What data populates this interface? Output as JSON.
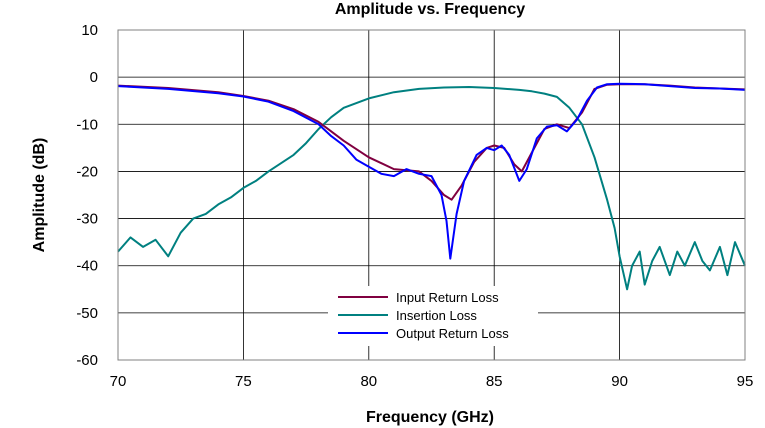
{
  "chart_data": {
    "type": "line",
    "title": "Amplitude vs. Frequency",
    "xlabel": "Frequency (GHz)",
    "ylabel": "Amplitude (dB)",
    "xlim": [
      70,
      95
    ],
    "ylim": [
      -60,
      10
    ],
    "xticks": [
      70,
      75,
      80,
      85,
      90,
      95
    ],
    "yticks": [
      10,
      0,
      -10,
      -20,
      -30,
      -40,
      -50,
      -60
    ],
    "grid": true,
    "legend_position": "bottom-center",
    "series": [
      {
        "name": "Input Return Loss",
        "color": "#800040",
        "points": [
          [
            70,
            -1.8
          ],
          [
            72,
            -2.3
          ],
          [
            74,
            -3.2
          ],
          [
            75,
            -4.0
          ],
          [
            76,
            -5.0
          ],
          [
            77,
            -6.8
          ],
          [
            78,
            -9.5
          ],
          [
            79,
            -13.5
          ],
          [
            80,
            -17.0
          ],
          [
            81,
            -19.5
          ],
          [
            82,
            -20.0
          ],
          [
            82.5,
            -22.0
          ],
          [
            83,
            -25.0
          ],
          [
            83.3,
            -26.0
          ],
          [
            83.7,
            -23.0
          ],
          [
            84.2,
            -18.0
          ],
          [
            84.7,
            -15.0
          ],
          [
            85.0,
            -14.5
          ],
          [
            85.4,
            -15.0
          ],
          [
            85.8,
            -18.5
          ],
          [
            86.1,
            -20.0
          ],
          [
            86.5,
            -16.0
          ],
          [
            87.0,
            -11.0
          ],
          [
            87.5,
            -10.0
          ],
          [
            88.0,
            -10.8
          ],
          [
            88.5,
            -7.5
          ],
          [
            89.0,
            -2.5
          ],
          [
            89.5,
            -1.6
          ],
          [
            90,
            -1.5
          ],
          [
            91,
            -1.5
          ],
          [
            92,
            -1.8
          ],
          [
            93,
            -2.2
          ],
          [
            94,
            -2.4
          ],
          [
            95,
            -2.6
          ]
        ]
      },
      {
        "name": "Insertion Loss",
        "color": "#008080",
        "points": [
          [
            70,
            -37
          ],
          [
            70.5,
            -34
          ],
          [
            71,
            -36
          ],
          [
            71.5,
            -34.5
          ],
          [
            72,
            -38
          ],
          [
            72.5,
            -33
          ],
          [
            73,
            -30
          ],
          [
            73.5,
            -29
          ],
          [
            74,
            -27
          ],
          [
            74.5,
            -25.5
          ],
          [
            75,
            -23.5
          ],
          [
            75.5,
            -22
          ],
          [
            76,
            -20
          ],
          [
            77,
            -16.5
          ],
          [
            77.5,
            -14
          ],
          [
            78,
            -11
          ],
          [
            78.5,
            -8.5
          ],
          [
            79,
            -6.5
          ],
          [
            80,
            -4.5
          ],
          [
            81,
            -3.2
          ],
          [
            82,
            -2.5
          ],
          [
            83,
            -2.2
          ],
          [
            84,
            -2.1
          ],
          [
            85,
            -2.3
          ],
          [
            86,
            -2.7
          ],
          [
            86.5,
            -3.0
          ],
          [
            87,
            -3.5
          ],
          [
            87.5,
            -4.2
          ],
          [
            88,
            -6.5
          ],
          [
            88.5,
            -10
          ],
          [
            89,
            -17
          ],
          [
            89.5,
            -26
          ],
          [
            89.8,
            -32
          ],
          [
            90,
            -38
          ],
          [
            90.3,
            -45
          ],
          [
            90.5,
            -40
          ],
          [
            90.8,
            -37
          ],
          [
            91,
            -44
          ],
          [
            91.3,
            -39
          ],
          [
            91.6,
            -36
          ],
          [
            92,
            -42
          ],
          [
            92.3,
            -37
          ],
          [
            92.6,
            -40
          ],
          [
            93,
            -35
          ],
          [
            93.3,
            -39
          ],
          [
            93.6,
            -41
          ],
          [
            94,
            -36
          ],
          [
            94.3,
            -42
          ],
          [
            94.6,
            -35
          ],
          [
            95,
            -40
          ]
        ]
      },
      {
        "name": "Output Return Loss",
        "color": "#0000ff",
        "points": [
          [
            70,
            -1.9
          ],
          [
            72,
            -2.5
          ],
          [
            74,
            -3.4
          ],
          [
            75,
            -4.1
          ],
          [
            76,
            -5.2
          ],
          [
            77,
            -7.2
          ],
          [
            78,
            -10.0
          ],
          [
            78.5,
            -12.5
          ],
          [
            79,
            -14.5
          ],
          [
            79.5,
            -17.5
          ],
          [
            80,
            -19.0
          ],
          [
            80.5,
            -20.5
          ],
          [
            81,
            -21.0
          ],
          [
            81.5,
            -19.5
          ],
          [
            82,
            -20.5
          ],
          [
            82.5,
            -21.0
          ],
          [
            82.9,
            -25.0
          ],
          [
            83.1,
            -30.5
          ],
          [
            83.25,
            -38.5
          ],
          [
            83.5,
            -29.0
          ],
          [
            83.8,
            -22.0
          ],
          [
            84.3,
            -16.5
          ],
          [
            84.7,
            -15.0
          ],
          [
            85.0,
            -15.5
          ],
          [
            85.3,
            -14.5
          ],
          [
            85.6,
            -16.5
          ],
          [
            86.0,
            -22.0
          ],
          [
            86.3,
            -19.5
          ],
          [
            86.7,
            -13.0
          ],
          [
            87.1,
            -10.5
          ],
          [
            87.5,
            -10.2
          ],
          [
            87.9,
            -11.5
          ],
          [
            88.3,
            -9.0
          ],
          [
            88.7,
            -5.0
          ],
          [
            89.1,
            -2.2
          ],
          [
            89.5,
            -1.5
          ],
          [
            90,
            -1.4
          ],
          [
            91,
            -1.5
          ],
          [
            92,
            -1.9
          ],
          [
            93,
            -2.3
          ],
          [
            94,
            -2.4
          ],
          [
            95,
            -2.7
          ]
        ]
      }
    ]
  }
}
